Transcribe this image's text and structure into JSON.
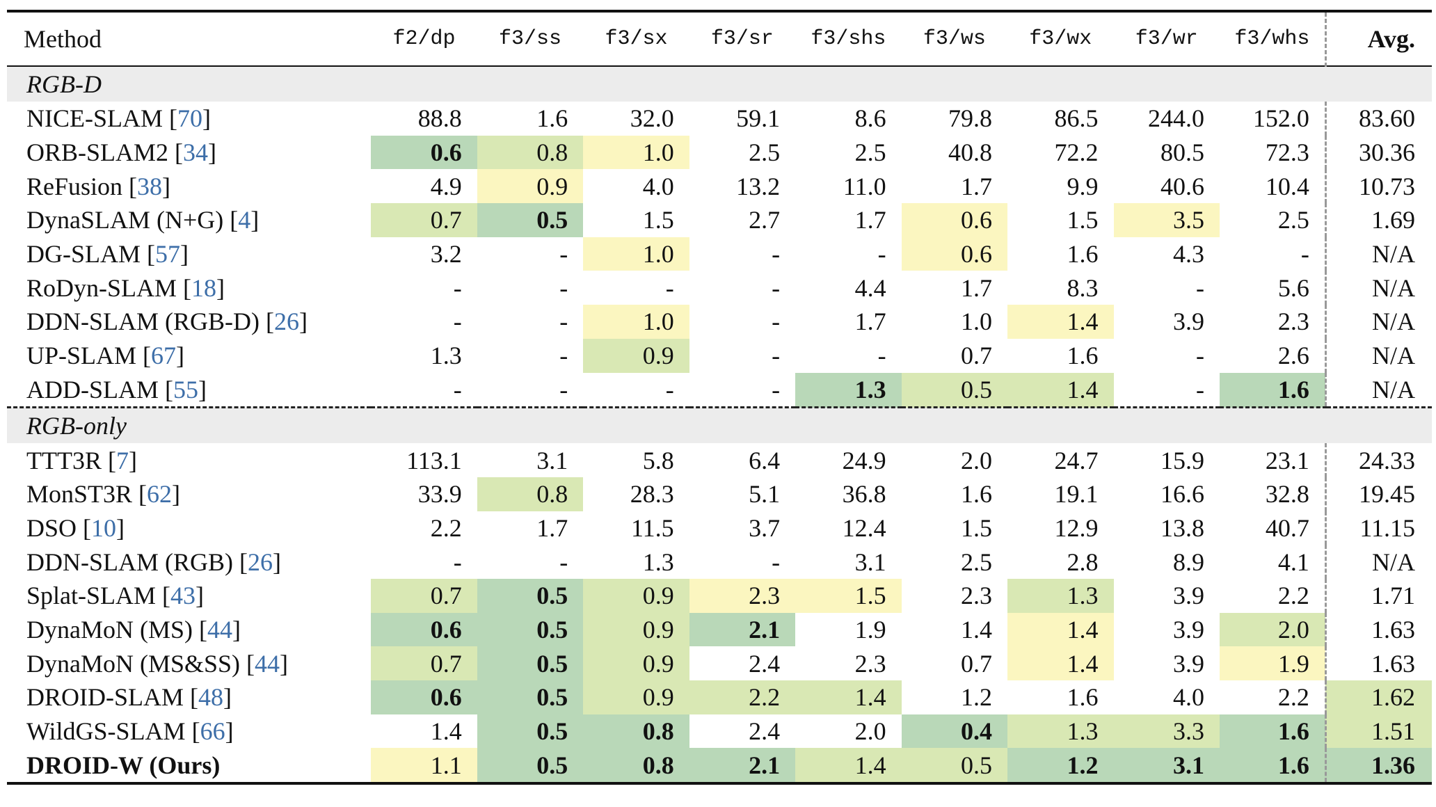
{
  "table": {
    "headers": [
      "Method",
      "f2/dp",
      "f3/ss",
      "f3/sx",
      "f3/sr",
      "f3/shs",
      "f3/ws",
      "f3/wx",
      "f3/wr",
      "f3/whs",
      "Avg."
    ],
    "sections": [
      {
        "label": "RGB-D",
        "rows": [
          {
            "method": "NICE-SLAM",
            "cite": "70",
            "bold_name": false,
            "values": [
              "88.8",
              "1.6",
              "32.0",
              "59.1",
              "8.6",
              "79.8",
              "86.5",
              "244.0",
              "152.0"
            ],
            "ranks": [
              0,
              0,
              0,
              0,
              0,
              0,
              0,
              0,
              0
            ],
            "avg": "83.60",
            "avg_rank": 0
          },
          {
            "method": "ORB-SLAM2",
            "cite": "34",
            "bold_name": false,
            "values": [
              "0.6",
              "0.8",
              "1.0",
              "2.5",
              "2.5",
              "40.8",
              "72.2",
              "80.5",
              "72.3"
            ],
            "ranks": [
              1,
              2,
              3,
              0,
              0,
              0,
              0,
              0,
              0
            ],
            "avg": "30.36",
            "avg_rank": 0
          },
          {
            "method": "ReFusion",
            "cite": "38",
            "bold_name": false,
            "values": [
              "4.9",
              "0.9",
              "4.0",
              "13.2",
              "11.0",
              "1.7",
              "9.9",
              "40.6",
              "10.4"
            ],
            "ranks": [
              0,
              3,
              0,
              0,
              0,
              0,
              0,
              0,
              0
            ],
            "avg": "10.73",
            "avg_rank": 0
          },
          {
            "method": "DynaSLAM (N+G)",
            "cite": "4",
            "bold_name": false,
            "values": [
              "0.7",
              "0.5",
              "1.5",
              "2.7",
              "1.7",
              "0.6",
              "1.5",
              "3.5",
              "2.5"
            ],
            "ranks": [
              2,
              1,
              0,
              0,
              0,
              3,
              0,
              3,
              0
            ],
            "avg": "1.69",
            "avg_rank": 0
          },
          {
            "method": "DG-SLAM",
            "cite": "57",
            "bold_name": false,
            "values": [
              "3.2",
              "-",
              "1.0",
              "-",
              "-",
              "0.6",
              "1.6",
              "4.3",
              "-"
            ],
            "ranks": [
              0,
              0,
              3,
              0,
              0,
              3,
              0,
              0,
              0
            ],
            "avg": "N/A",
            "avg_rank": 0
          },
          {
            "method": "RoDyn-SLAM",
            "cite": "18",
            "bold_name": false,
            "values": [
              "-",
              "-",
              "-",
              "-",
              "4.4",
              "1.7",
              "8.3",
              "-",
              "5.6"
            ],
            "ranks": [
              0,
              0,
              0,
              0,
              0,
              0,
              0,
              0,
              0
            ],
            "avg": "N/A",
            "avg_rank": 0
          },
          {
            "method": "DDN-SLAM (RGB-D)",
            "cite": "26",
            "bold_name": false,
            "values": [
              "-",
              "-",
              "1.0",
              "-",
              "1.7",
              "1.0",
              "1.4",
              "3.9",
              "2.3"
            ],
            "ranks": [
              0,
              0,
              3,
              0,
              0,
              0,
              3,
              0,
              0
            ],
            "avg": "N/A",
            "avg_rank": 0
          },
          {
            "method": "UP-SLAM",
            "cite": "67",
            "bold_name": false,
            "values": [
              "1.3",
              "-",
              "0.9",
              "-",
              "-",
              "0.7",
              "1.6",
              "-",
              "2.6"
            ],
            "ranks": [
              0,
              0,
              2,
              0,
              0,
              0,
              0,
              0,
              0
            ],
            "avg": "N/A",
            "avg_rank": 0
          },
          {
            "method": "ADD-SLAM",
            "cite": "55",
            "bold_name": false,
            "values": [
              "-",
              "-",
              "-",
              "-",
              "1.3",
              "0.5",
              "1.4",
              "-",
              "1.6"
            ],
            "ranks": [
              0,
              0,
              0,
              0,
              1,
              2,
              2,
              0,
              1
            ],
            "avg": "N/A",
            "avg_rank": 0
          }
        ]
      },
      {
        "label": "RGB-only",
        "rows": [
          {
            "method": "TTT3R",
            "cite": "7",
            "bold_name": false,
            "values": [
              "113.1",
              "3.1",
              "5.8",
              "6.4",
              "24.9",
              "2.0",
              "24.7",
              "15.9",
              "23.1"
            ],
            "ranks": [
              0,
              0,
              0,
              0,
              0,
              0,
              0,
              0,
              0
            ],
            "avg": "24.33",
            "avg_rank": 0
          },
          {
            "method": "MonST3R",
            "cite": "62",
            "bold_name": false,
            "values": [
              "33.9",
              "0.8",
              "28.3",
              "5.1",
              "36.8",
              "1.6",
              "19.1",
              "16.6",
              "32.8"
            ],
            "ranks": [
              0,
              2,
              0,
              0,
              0,
              0,
              0,
              0,
              0
            ],
            "avg": "19.45",
            "avg_rank": 0
          },
          {
            "method": "DSO",
            "cite": "10",
            "bold_name": false,
            "values": [
              "2.2",
              "1.7",
              "11.5",
              "3.7",
              "12.4",
              "1.5",
              "12.9",
              "13.8",
              "40.7"
            ],
            "ranks": [
              0,
              0,
              0,
              0,
              0,
              0,
              0,
              0,
              0
            ],
            "avg": "11.15",
            "avg_rank": 0
          },
          {
            "method": "DDN-SLAM (RGB)",
            "cite": "26",
            "bold_name": false,
            "values": [
              "-",
              "-",
              "1.3",
              "-",
              "3.1",
              "2.5",
              "2.8",
              "8.9",
              "4.1"
            ],
            "ranks": [
              0,
              0,
              0,
              0,
              0,
              0,
              0,
              0,
              0
            ],
            "avg": "N/A",
            "avg_rank": 0
          },
          {
            "method": "Splat-SLAM",
            "cite": "43",
            "bold_name": false,
            "values": [
              "0.7",
              "0.5",
              "0.9",
              "2.3",
              "1.5",
              "2.3",
              "1.3",
              "3.9",
              "2.2"
            ],
            "ranks": [
              2,
              1,
              2,
              3,
              3,
              0,
              2,
              0,
              0
            ],
            "avg": "1.71",
            "avg_rank": 0
          },
          {
            "method": "DynaMoN (MS)",
            "cite": "44",
            "bold_name": false,
            "values": [
              "0.6",
              "0.5",
              "0.9",
              "2.1",
              "1.9",
              "1.4",
              "1.4",
              "3.9",
              "2.0"
            ],
            "ranks": [
              1,
              1,
              2,
              1,
              0,
              0,
              3,
              0,
              2
            ],
            "avg": "1.63",
            "avg_rank": 0
          },
          {
            "method": "DynaMoN (MS&SS) ",
            "cite": "44",
            "bold_name": false,
            "values": [
              "0.7",
              "0.5",
              "0.9",
              "2.4",
              "2.3",
              "0.7",
              "1.4",
              "3.9",
              "1.9"
            ],
            "ranks": [
              2,
              1,
              2,
              0,
              0,
              0,
              3,
              0,
              3
            ],
            "avg": "1.63",
            "avg_rank": 0
          },
          {
            "method": "DROID-SLAM",
            "cite": "48",
            "bold_name": false,
            "values": [
              "0.6",
              "0.5",
              "0.9",
              "2.2",
              "1.4",
              "1.2",
              "1.6",
              "4.0",
              "2.2"
            ],
            "ranks": [
              1,
              1,
              2,
              2,
              2,
              0,
              0,
              0,
              0
            ],
            "avg": "1.62",
            "avg_rank": 2
          },
          {
            "method": "WildGS-SLAM",
            "cite": "66",
            "bold_name": false,
            "values": [
              "1.4",
              "0.5",
              "0.8",
              "2.4",
              "2.0",
              "0.4",
              "1.3",
              "3.3",
              "1.6"
            ],
            "ranks": [
              0,
              1,
              1,
              0,
              0,
              1,
              2,
              2,
              1
            ],
            "avg": "1.51",
            "avg_rank": 2
          },
          {
            "method": "DROID-W (Ours)",
            "cite": "",
            "bold_name": true,
            "values": [
              "1.1",
              "0.5",
              "0.8",
              "2.1",
              "1.4",
              "0.5",
              "1.2",
              "3.1",
              "1.6"
            ],
            "ranks": [
              3,
              1,
              1,
              1,
              2,
              2,
              1,
              1,
              1
            ],
            "avg": "1.36",
            "avg_rank": 1
          }
        ]
      }
    ]
  }
}
